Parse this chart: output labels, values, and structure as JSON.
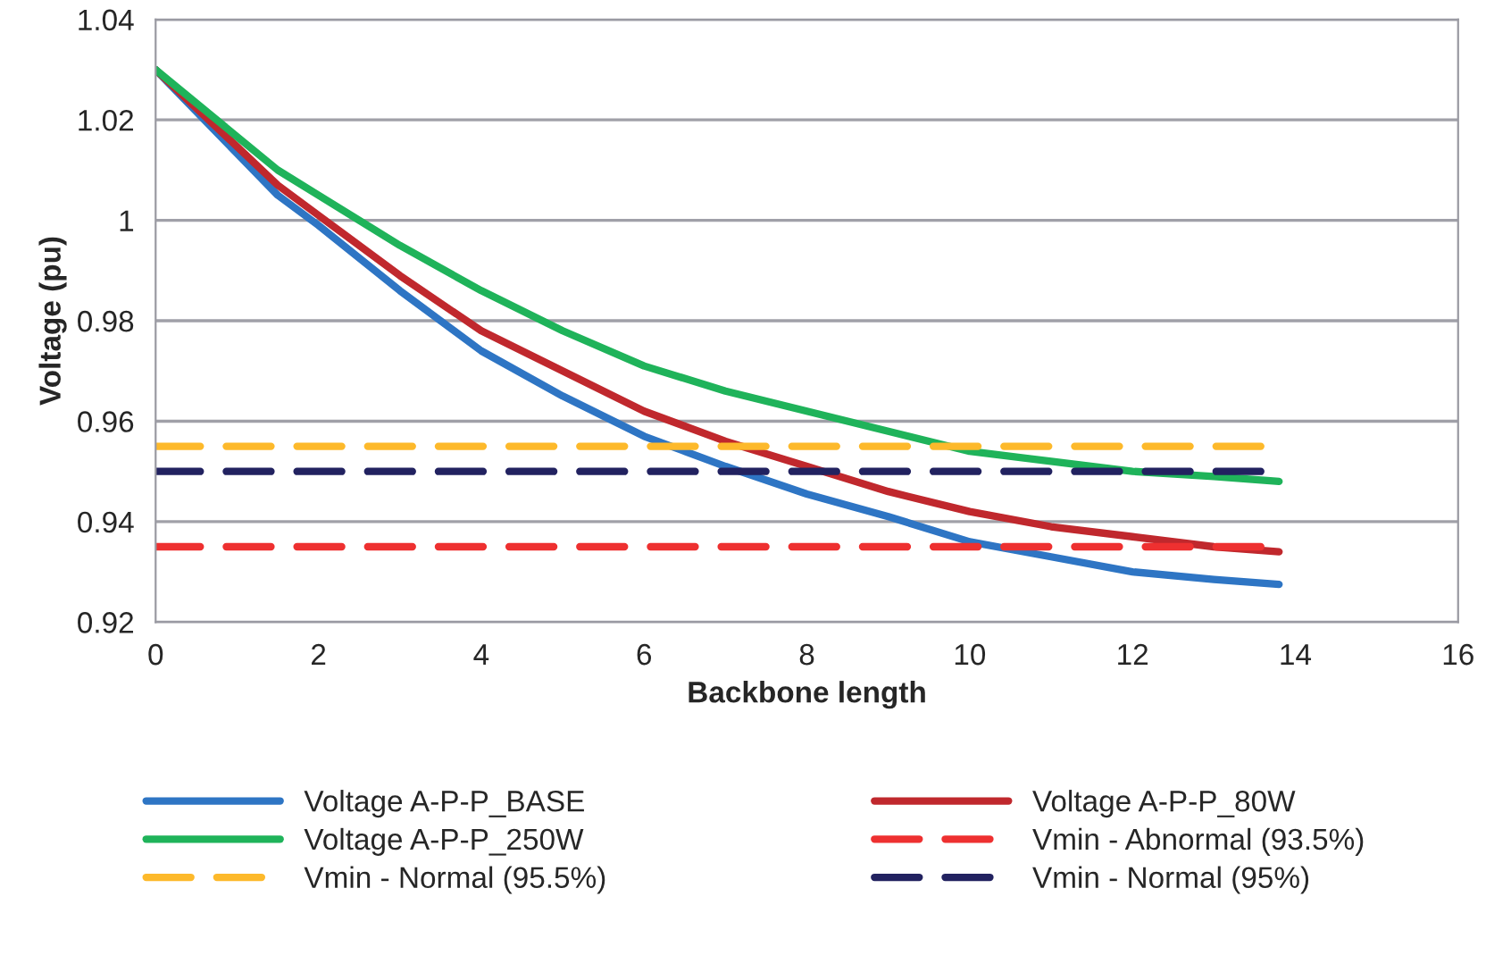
{
  "chart_data": {
    "type": "line",
    "xlabel": "Backbone length",
    "ylabel": "Voltage (pu)",
    "xlim": [
      0,
      16
    ],
    "xticks": [
      0,
      2,
      4,
      6,
      8,
      10,
      12,
      14,
      16
    ],
    "ylim": [
      0.92,
      1.04
    ],
    "yticks": [
      0.92,
      0.94,
      0.96,
      0.98,
      1,
      1.02,
      1.04
    ],
    "grid": "y",
    "legend": "bottom",
    "marker": "none",
    "series": [
      {
        "name": "Voltage A-P-P_BASE",
        "color": "#2e75c4",
        "line_style": "solid",
        "x": [
          0,
          1.5,
          2,
          3,
          4,
          5,
          6,
          7,
          8,
          9,
          10,
          11,
          12,
          13,
          13.8
        ],
        "values": [
          1.03,
          1.005,
          0.999,
          0.986,
          0.974,
          0.965,
          0.957,
          0.951,
          0.9455,
          0.941,
          0.936,
          0.933,
          0.93,
          0.9285,
          0.9275
        ]
      },
      {
        "name": "Voltage A-P-P_80W",
        "color": "#c0282d",
        "line_style": "solid",
        "x": [
          0,
          1.5,
          2,
          3,
          4,
          5,
          6,
          7,
          8,
          9,
          10,
          11,
          12,
          13,
          13.8
        ],
        "values": [
          1.03,
          1.007,
          1.001,
          0.989,
          0.978,
          0.97,
          0.962,
          0.956,
          0.951,
          0.946,
          0.942,
          0.939,
          0.937,
          0.935,
          0.934
        ]
      },
      {
        "name": "Voltage A-P-P_250W",
        "color": "#1fb35a",
        "line_style": "solid",
        "x": [
          0,
          1.5,
          2,
          3,
          4,
          5,
          6,
          7,
          8,
          9,
          10,
          11,
          12,
          13,
          13.8
        ],
        "values": [
          1.03,
          1.01,
          1.005,
          0.995,
          0.986,
          0.978,
          0.971,
          0.966,
          0.962,
          0.958,
          0.954,
          0.952,
          0.95,
          0.949,
          0.948
        ]
      },
      {
        "name": "Vmin - Abnormal (93.5%)",
        "color": "#ee3030",
        "line_style": "dashed",
        "x": [
          0,
          13.7
        ],
        "values": [
          0.935,
          0.935
        ]
      },
      {
        "name": "Vmin - Normal (95.5%)",
        "color": "#fdb92b",
        "line_style": "dashed",
        "x": [
          0,
          13.7
        ],
        "values": [
          0.955,
          0.955
        ]
      },
      {
        "name": "Vmin - Normal (95%)",
        "color": "#222260",
        "line_style": "dashed",
        "x": [
          0,
          13.7
        ],
        "values": [
          0.95,
          0.95
        ]
      }
    ]
  }
}
